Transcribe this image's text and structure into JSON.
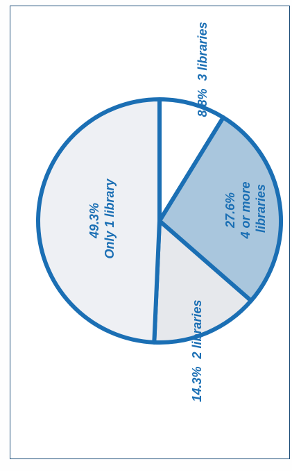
{
  "chart_data": {
    "type": "pie",
    "title": "",
    "slices": [
      {
        "label": "Only 1 library",
        "value": 49.3,
        "value_label": "49.3%",
        "color": "#eef0f4"
      },
      {
        "label": "3 libraries",
        "value": 8.8,
        "value_label": "8.8%",
        "color": "#ffffff"
      },
      {
        "label": "4 or more libraries",
        "value": 27.6,
        "value_label": "27.6%",
        "label_lines": [
          "4 or more",
          "libraries"
        ],
        "color": "#a9c6dd"
      },
      {
        "label": "2 libraries",
        "value": 14.3,
        "value_label": "14.3%",
        "color": "#e6e8ec"
      }
    ],
    "border_color": "#1b6fb4",
    "text_color": "#1b6fb4",
    "orientation": "rotated-90-ccw"
  }
}
